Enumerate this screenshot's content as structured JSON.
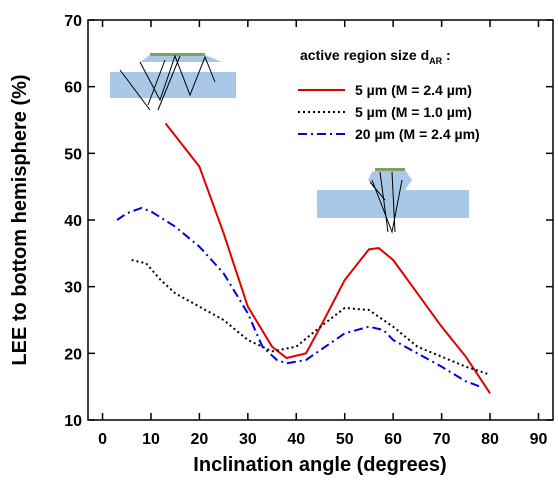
{
  "chart_data": {
    "type": "line",
    "x_label": "Inclination angle (degrees)",
    "y_label": "LEE to bottom hemisphere (%)",
    "legend_title": {
      "text": "active region size d",
      "subscript": "AR",
      "suffix": " :"
    },
    "xlim": [
      -3,
      93
    ],
    "ylim": [
      10,
      70
    ],
    "xticks": [
      0,
      10,
      20,
      30,
      40,
      50,
      60,
      70,
      80,
      90
    ],
    "yticks": [
      10,
      20,
      30,
      40,
      50,
      60,
      70
    ],
    "series": [
      {
        "name": "5 µm (M = 2.4 µm)",
        "color": "#e00000",
        "dash": "solid",
        "x": [
          13,
          20,
          25,
          30,
          35,
          38,
          42,
          45,
          50,
          55,
          57,
          60,
          65,
          70,
          75,
          80
        ],
        "values": [
          54.5,
          48,
          38,
          27,
          21,
          19.3,
          20,
          24,
          31,
          35.6,
          35.8,
          34,
          29,
          24,
          19.5,
          14
        ]
      },
      {
        "name": "5 µm (M = 1.0 µm)",
        "color": "#000000",
        "dash": "dot",
        "x": [
          6,
          9,
          12,
          15,
          20,
          25,
          30,
          35,
          40,
          45,
          50,
          55,
          60,
          65,
          70,
          75,
          80
        ],
        "values": [
          34,
          33.5,
          31,
          29,
          27,
          25,
          22,
          20.3,
          21,
          24,
          26.8,
          26.5,
          24,
          21,
          19.5,
          18,
          16.8
        ]
      },
      {
        "name": "20 µm (M = 2.4 µm)",
        "color": "#0000e0",
        "dash": "dashdot",
        "x": [
          3,
          5,
          8,
          10,
          15,
          20,
          25,
          30,
          33,
          36,
          38,
          42,
          45,
          50,
          55,
          58,
          60,
          65,
          70,
          75,
          78
        ],
        "values": [
          40,
          41,
          41.8,
          41.3,
          39,
          36,
          32,
          26,
          21,
          19,
          18.5,
          19,
          20.5,
          23,
          24,
          23.5,
          22,
          20,
          18,
          15.8,
          15
        ]
      }
    ]
  }
}
